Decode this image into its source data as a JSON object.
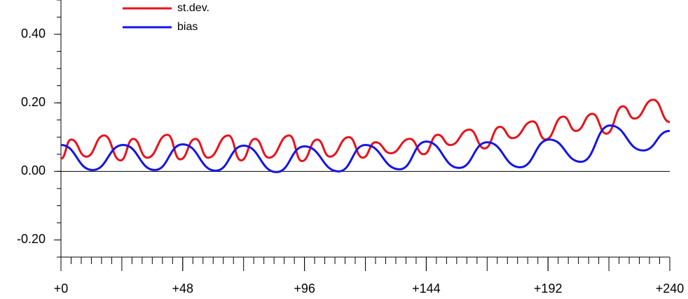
{
  "chart_data": {
    "type": "line",
    "xlim": [
      0,
      240
    ],
    "xticks": [
      {
        "value": 0,
        "label": "+0"
      },
      {
        "value": 48,
        "label": "+48"
      },
      {
        "value": 96,
        "label": "+96"
      },
      {
        "value": 144,
        "label": "+144"
      },
      {
        "value": 192,
        "label": "+192"
      },
      {
        "value": 240,
        "label": "+240"
      }
    ],
    "x_mid_tick_step": 24,
    "x_minor_tick_step": 4,
    "ylim": [
      -0.25,
      0.5
    ],
    "yticks": [
      {
        "value": -0.2,
        "label": "-0.20"
      },
      {
        "value": 0,
        "label": "0.00"
      },
      {
        "value": 0.2,
        "label": "0.20"
      },
      {
        "value": 0.4,
        "label": "0.40"
      }
    ],
    "y_minor_tick_step": 0.05,
    "zero_line": true,
    "legend": "upper left",
    "series": [
      {
        "name": "st.dev.",
        "color": "#e8121a",
        "x": [
          0,
          4,
          10,
          17,
          23.5,
          28.5,
          34,
          42,
          47,
          53,
          58,
          66,
          71,
          76.5,
          82,
          90,
          95,
          101,
          106,
          113.5,
          119,
          124,
          130,
          137.5,
          143,
          148.5,
          153.5,
          161,
          167,
          173,
          178,
          186,
          191,
          198,
          203,
          209.5,
          215,
          221.5,
          226,
          233.5,
          240
        ],
        "values": [
          0.037,
          0.093,
          0.043,
          0.105,
          0.032,
          0.095,
          0.04,
          0.107,
          0.035,
          0.095,
          0.04,
          0.105,
          0.032,
          0.095,
          0.04,
          0.105,
          0.03,
          0.093,
          0.043,
          0.1,
          0.04,
          0.085,
          0.053,
          0.095,
          0.05,
          0.107,
          0.077,
          0.122,
          0.067,
          0.13,
          0.097,
          0.146,
          0.093,
          0.16,
          0.118,
          0.168,
          0.11,
          0.19,
          0.154,
          0.209,
          0.144
        ]
      },
      {
        "name": "bias",
        "color": "#1414e6",
        "x": [
          0,
          12.5,
          24.5,
          37,
          48,
          61,
          72,
          85,
          96,
          109.5,
          120,
          133.5,
          144,
          157,
          168,
          181,
          192.5,
          205,
          216.5,
          229.5,
          240
        ],
        "values": [
          0.077,
          0.004,
          0.077,
          0.004,
          0.079,
          0.002,
          0.075,
          -0.002,
          0.073,
          0,
          0.077,
          0.006,
          0.087,
          0.01,
          0.085,
          0.012,
          0.093,
          0.028,
          0.134,
          0.061,
          0.118
        ]
      }
    ]
  }
}
